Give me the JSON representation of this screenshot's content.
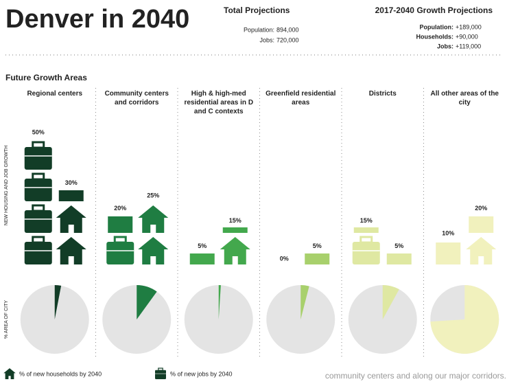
{
  "header": {
    "title": "Denver in 2040",
    "total_title": "Total Projections",
    "total": [
      [
        "Population:",
        "894,000"
      ],
      [
        "Jobs:",
        "720,000"
      ]
    ],
    "growth_title": "2017-2040 Growth Projections",
    "growth": [
      [
        "Population:",
        "+189,000"
      ],
      [
        "Households:",
        "+90,000"
      ],
      [
        "Jobs:",
        "+119,000"
      ]
    ]
  },
  "section_title": "Future Growth Areas",
  "caption": "community centers and along our major corridors.",
  "chart_data": [
    {
      "type": "bar",
      "y_label": "NEW HOUSING AND JOB GROWTH",
      "categories": [
        "Regional centers",
        "Community centers and corridors",
        "High & high-med residential areas in D and C contexts",
        "Greenfield residential areas",
        "Districts",
        "All other areas of the city"
      ],
      "colors": [
        "#123d27",
        "#1f7d42",
        "#43a84d",
        "#a8d06c",
        "#dfe8a2",
        "#f1f1bd"
      ],
      "series": [
        {
          "name": "% of new jobs by 2040",
          "values": [
            50,
            20,
            5,
            0,
            15,
            10
          ],
          "value_labels": [
            "50%",
            "20%",
            "5%",
            "0%",
            "15%",
            "10%"
          ]
        },
        {
          "name": "% of new households by 2040",
          "values": [
            30,
            25,
            15,
            5,
            5,
            20
          ],
          "value_labels": [
            "30%",
            "25%",
            "15%",
            "5%",
            "5%",
            "20%"
          ]
        }
      ]
    },
    {
      "type": "pie",
      "y_label": "% AREA OF CITY",
      "values": [
        3,
        10,
        1,
        4,
        8,
        74
      ],
      "background_color": "#e4e4e4"
    }
  ]
}
